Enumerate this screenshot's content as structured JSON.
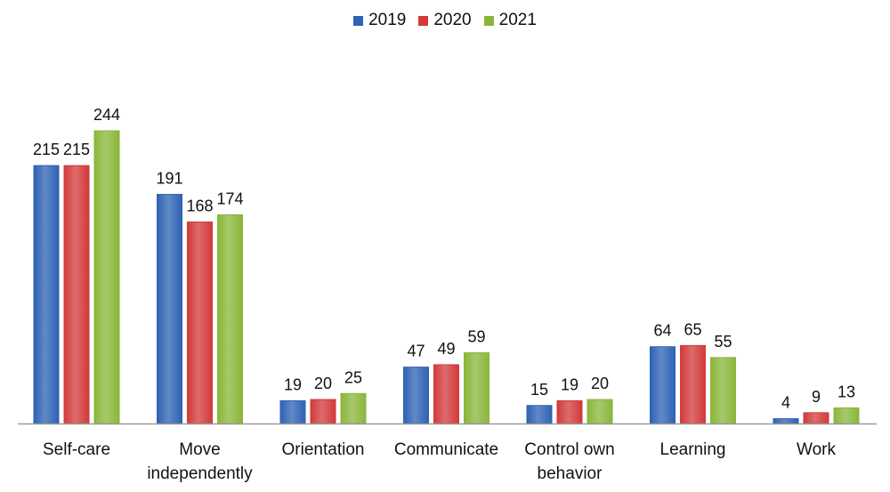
{
  "chart_data": {
    "type": "bar",
    "title": "",
    "xlabel": "",
    "ylabel": "",
    "categories": [
      [
        "Self-care"
      ],
      [
        "Move",
        "independently"
      ],
      [
        "Orientation"
      ],
      [
        "Communicate"
      ],
      [
        "Control own",
        "behavior"
      ],
      [
        "Learning"
      ],
      [
        "Work"
      ]
    ],
    "series": [
      {
        "name": "2019",
        "color": "#2e62b4",
        "values": [
          215,
          191,
          19,
          47,
          15,
          64,
          4
        ]
      },
      {
        "name": "2020",
        "color": "#d23a3a",
        "values": [
          215,
          168,
          20,
          49,
          19,
          65,
          9
        ]
      },
      {
        "name": "2021",
        "color": "#8ab63a",
        "values": [
          244,
          174,
          25,
          59,
          20,
          55,
          13
        ]
      }
    ],
    "ylim": [
      0,
      244
    ],
    "grid": false,
    "legend_position": "top-center",
    "data_labels": true
  }
}
